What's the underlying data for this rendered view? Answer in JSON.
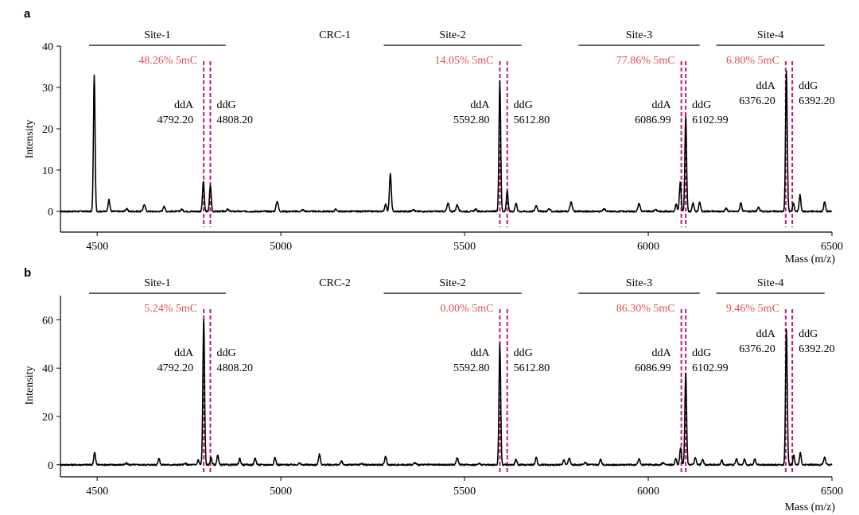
{
  "figure": {
    "panel_count": 2
  },
  "colors": {
    "trace": "#000000",
    "methylation_label": "#d9534f",
    "marker_lines": "#c2187a",
    "axis": "#000000"
  },
  "chart_data": [
    {
      "type": "line",
      "panel_label": "a",
      "sample": "CRC-1",
      "title": "CRC-1",
      "xlabel": "Mass (m/z)",
      "ylabel": "Intensity",
      "xlim": [
        4400,
        6500
      ],
      "ylim": [
        -5,
        40
      ],
      "xticks": [
        4500,
        5000,
        5500,
        6000,
        6500
      ],
      "yticks": [
        0,
        10,
        20,
        30,
        40
      ],
      "sites": [
        {
          "name": "Site-1",
          "range": [
            4400,
            4850
          ],
          "methylation": "48.26% 5mC",
          "ddA_label": "ddA",
          "ddA_mass": "4792.20",
          "ddG_label": "ddG",
          "ddG_mass": "4808.20",
          "marker_ddA": 4790,
          "marker_ddG": 4808
        },
        {
          "name": "Site-2",
          "range": [
            5280,
            5655
          ],
          "methylation": "14.05% 5mC",
          "ddA_label": "ddA",
          "ddA_mass": "5592.80",
          "ddG_label": "ddG",
          "ddG_mass": "5612.80",
          "marker_ddA": 5596,
          "marker_ddG": 5616
        },
        {
          "name": "Site-3",
          "range": [
            5810,
            6140
          ],
          "methylation": "77.86% 5mC",
          "ddA_label": "ddA",
          "ddA_mass": "6086.99",
          "ddG_label": "ddG",
          "ddG_mass": "6102.99",
          "marker_ddA": 6090,
          "marker_ddG": 6102
        },
        {
          "name": "Site-4",
          "range": [
            6185,
            6480
          ],
          "methylation": "6.80% 5mC",
          "ddA_label": "ddA",
          "ddA_mass": "6376.20",
          "ddG_label": "ddG",
          "ddG_mass": "6392.20",
          "marker_ddA": 6374,
          "marker_ddG": 6392
        }
      ],
      "peaks": [
        {
          "x": 4492,
          "y": 33,
          "w": 2.2
        },
        {
          "x": 4532,
          "y": 2.8,
          "w": 2.5
        },
        {
          "x": 4580,
          "y": 0.6,
          "w": 3
        },
        {
          "x": 4628,
          "y": 1.6,
          "w": 3
        },
        {
          "x": 4682,
          "y": 1.3,
          "w": 2.5
        },
        {
          "x": 4730,
          "y": 0.5,
          "w": 3
        },
        {
          "x": 4789,
          "y": 7.2,
          "w": 2.3
        },
        {
          "x": 4808,
          "y": 6.3,
          "w": 2.3
        },
        {
          "x": 4855,
          "y": 0.5,
          "w": 3
        },
        {
          "x": 4990,
          "y": 2.4,
          "w": 3
        },
        {
          "x": 5060,
          "y": 0.4,
          "w": 3
        },
        {
          "x": 5150,
          "y": 0.5,
          "w": 3
        },
        {
          "x": 5285,
          "y": 1.8,
          "w": 2.5
        },
        {
          "x": 5298,
          "y": 9.0,
          "w": 2.5
        },
        {
          "x": 5360,
          "y": 0.5,
          "w": 3
        },
        {
          "x": 5455,
          "y": 1.9,
          "w": 3
        },
        {
          "x": 5480,
          "y": 1.6,
          "w": 3
        },
        {
          "x": 5530,
          "y": 0.5,
          "w": 3
        },
        {
          "x": 5596,
          "y": 31.5,
          "w": 2.3
        },
        {
          "x": 5616,
          "y": 5.0,
          "w": 2.3
        },
        {
          "x": 5640,
          "y": 2.0,
          "w": 2.5
        },
        {
          "x": 5695,
          "y": 1.4,
          "w": 3
        },
        {
          "x": 5730,
          "y": 0.6,
          "w": 3
        },
        {
          "x": 5790,
          "y": 2.2,
          "w": 3
        },
        {
          "x": 5880,
          "y": 0.6,
          "w": 3
        },
        {
          "x": 5975,
          "y": 1.9,
          "w": 3
        },
        {
          "x": 6020,
          "y": 0.5,
          "w": 3
        },
        {
          "x": 6076,
          "y": 1.7,
          "w": 2.3
        },
        {
          "x": 6087,
          "y": 7.0,
          "w": 2.3
        },
        {
          "x": 6102,
          "y": 23.0,
          "w": 2.3
        },
        {
          "x": 6122,
          "y": 2.0,
          "w": 2.5
        },
        {
          "x": 6140,
          "y": 2.2,
          "w": 2.5
        },
        {
          "x": 6212,
          "y": 0.7,
          "w": 3
        },
        {
          "x": 6252,
          "y": 2.1,
          "w": 2.5
        },
        {
          "x": 6300,
          "y": 0.9,
          "w": 3
        },
        {
          "x": 6376,
          "y": 34.0,
          "w": 2.3
        },
        {
          "x": 6395,
          "y": 2.0,
          "w": 2.3
        },
        {
          "x": 6413,
          "y": 4.0,
          "w": 2.3
        },
        {
          "x": 6480,
          "y": 2.3,
          "w": 2.5
        }
      ]
    },
    {
      "type": "line",
      "panel_label": "b",
      "sample": "CRC-2",
      "title": "CRC-2",
      "xlabel": "Mass (m/z)",
      "ylabel": "Intensity",
      "xlim": [
        4400,
        6500
      ],
      "ylim": [
        -5,
        70
      ],
      "xticks": [
        4500,
        5000,
        5500,
        6000,
        6500
      ],
      "yticks": [
        0,
        20,
        40,
        60
      ],
      "sites": [
        {
          "name": "Site-1",
          "range": [
            4400,
            4850
          ],
          "methylation": "5.24% 5mC",
          "ddA_label": "ddA",
          "ddA_mass": "4792.20",
          "ddG_label": "ddG",
          "ddG_mass": "4808.20",
          "marker_ddA": 4790,
          "marker_ddG": 4808
        },
        {
          "name": "Site-2",
          "range": [
            5280,
            5655
          ],
          "methylation": "0.00% 5mC",
          "ddA_label": "ddA",
          "ddA_mass": "5592.80",
          "ddG_label": "ddG",
          "ddG_mass": "5612.80",
          "marker_ddA": 5596,
          "marker_ddG": 5616
        },
        {
          "name": "Site-3",
          "range": [
            5810,
            6140
          ],
          "methylation": "86.30% 5mC",
          "ddA_label": "ddA",
          "ddA_mass": "6086.99",
          "ddG_label": "ddG",
          "ddG_mass": "6102.99",
          "marker_ddA": 6090,
          "marker_ddG": 6102
        },
        {
          "name": "Site-4",
          "range": [
            6185,
            6480
          ],
          "methylation": "9.46% 5mC",
          "ddA_label": "ddA",
          "ddA_mass": "6376.20",
          "ddG_label": "ddG",
          "ddG_mass": "6392.20",
          "marker_ddA": 6374,
          "marker_ddG": 6392
        }
      ],
      "peaks": [
        {
          "x": 4493,
          "y": 5.0,
          "w": 2.5
        },
        {
          "x": 4580,
          "y": 0.6,
          "w": 3
        },
        {
          "x": 4668,
          "y": 2.6,
          "w": 2.5
        },
        {
          "x": 4740,
          "y": 0.5,
          "w": 3
        },
        {
          "x": 4775,
          "y": 2.0,
          "w": 2.3
        },
        {
          "x": 4790,
          "y": 60.0,
          "w": 2.3
        },
        {
          "x": 4810,
          "y": 3.0,
          "w": 2.3
        },
        {
          "x": 4828,
          "y": 4.0,
          "w": 2.3
        },
        {
          "x": 4888,
          "y": 2.6,
          "w": 2.5
        },
        {
          "x": 4930,
          "y": 2.8,
          "w": 2.5
        },
        {
          "x": 4984,
          "y": 3.0,
          "w": 2.5
        },
        {
          "x": 5050,
          "y": 0.6,
          "w": 3
        },
        {
          "x": 5105,
          "y": 4.3,
          "w": 2.5
        },
        {
          "x": 5165,
          "y": 1.5,
          "w": 2.5
        },
        {
          "x": 5220,
          "y": 0.5,
          "w": 3
        },
        {
          "x": 5285,
          "y": 3.5,
          "w": 2.5
        },
        {
          "x": 5365,
          "y": 0.8,
          "w": 3
        },
        {
          "x": 5480,
          "y": 2.8,
          "w": 3
        },
        {
          "x": 5540,
          "y": 0.5,
          "w": 3
        },
        {
          "x": 5596,
          "y": 50.0,
          "w": 2.3
        },
        {
          "x": 5640,
          "y": 2.2,
          "w": 2.5
        },
        {
          "x": 5695,
          "y": 3.0,
          "w": 2.5
        },
        {
          "x": 5770,
          "y": 2.0,
          "w": 2.5
        },
        {
          "x": 5785,
          "y": 2.8,
          "w": 2.5
        },
        {
          "x": 5828,
          "y": 1.0,
          "w": 3
        },
        {
          "x": 5870,
          "y": 2.4,
          "w": 2.5
        },
        {
          "x": 5975,
          "y": 2.6,
          "w": 2.5
        },
        {
          "x": 6040,
          "y": 0.8,
          "w": 3
        },
        {
          "x": 6075,
          "y": 2.6,
          "w": 2.3
        },
        {
          "x": 6088,
          "y": 7.0,
          "w": 2.3
        },
        {
          "x": 6102,
          "y": 38.0,
          "w": 2.3
        },
        {
          "x": 6128,
          "y": 3.0,
          "w": 2.5
        },
        {
          "x": 6148,
          "y": 2.2,
          "w": 2.5
        },
        {
          "x": 6200,
          "y": 1.8,
          "w": 2.5
        },
        {
          "x": 6240,
          "y": 2.4,
          "w": 2.5
        },
        {
          "x": 6262,
          "y": 2.2,
          "w": 2.5
        },
        {
          "x": 6290,
          "y": 2.3,
          "w": 2.5
        },
        {
          "x": 6376,
          "y": 56.0,
          "w": 2.3
        },
        {
          "x": 6396,
          "y": 4.0,
          "w": 2.3
        },
        {
          "x": 6414,
          "y": 5.0,
          "w": 2.3
        },
        {
          "x": 6480,
          "y": 3.2,
          "w": 2.5
        }
      ]
    }
  ]
}
